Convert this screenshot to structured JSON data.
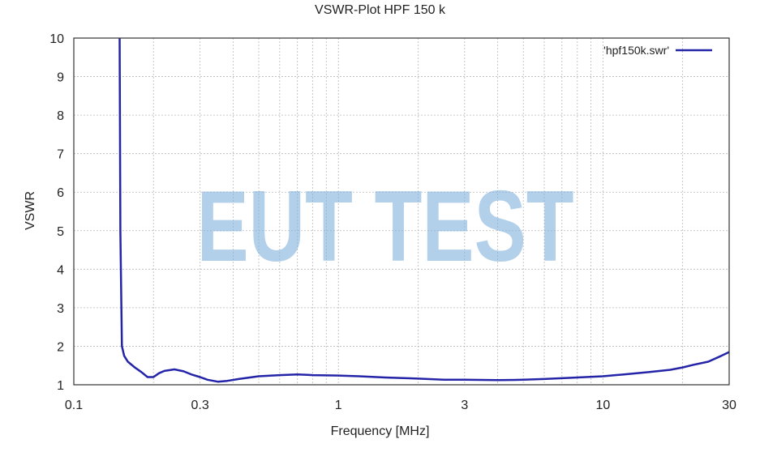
{
  "chart_data": {
    "type": "line",
    "title": "VSWR-Plot HPF 150 k",
    "xlabel": "Frequency [MHz]",
    "ylabel": "VSWR",
    "xscale": "log",
    "xlim": [
      0.1,
      30
    ],
    "ylim": [
      1,
      10
    ],
    "xticks": [
      0.1,
      0.3,
      1,
      3,
      10,
      30
    ],
    "xtick_labels": [
      "0.1",
      "0.3",
      "1",
      "3",
      "10",
      "30"
    ],
    "yticks": [
      1,
      2,
      3,
      4,
      5,
      6,
      7,
      8,
      9,
      10
    ],
    "ytick_labels": [
      "1",
      "2",
      "3",
      "4",
      "5",
      "6",
      "7",
      "8",
      "9",
      "10"
    ],
    "grid": true,
    "legend_position": "top-right",
    "watermark": "EUT TEST",
    "series": [
      {
        "name": "'hpf150k.swr'",
        "color": "#2424a8",
        "x": [
          0.149,
          0.15,
          0.152,
          0.155,
          0.16,
          0.17,
          0.18,
          0.19,
          0.2,
          0.21,
          0.22,
          0.24,
          0.26,
          0.28,
          0.3,
          0.32,
          0.35,
          0.38,
          0.42,
          0.5,
          0.6,
          0.7,
          0.8,
          1.0,
          1.2,
          1.5,
          2.0,
          2.5,
          3.0,
          4.0,
          5.0,
          6.0,
          7.0,
          8.0,
          10.0,
          12.0,
          15.0,
          18.0,
          20.0,
          22.0,
          25.0,
          28.0,
          30.0
        ],
        "y": [
          10,
          5.0,
          2.0,
          1.75,
          1.6,
          1.45,
          1.33,
          1.2,
          1.2,
          1.3,
          1.36,
          1.4,
          1.35,
          1.26,
          1.2,
          1.13,
          1.08,
          1.1,
          1.15,
          1.22,
          1.25,
          1.27,
          1.25,
          1.24,
          1.22,
          1.19,
          1.16,
          1.13,
          1.13,
          1.12,
          1.13,
          1.15,
          1.17,
          1.19,
          1.22,
          1.27,
          1.33,
          1.39,
          1.45,
          1.52,
          1.6,
          1.75,
          1.85
        ]
      }
    ]
  }
}
